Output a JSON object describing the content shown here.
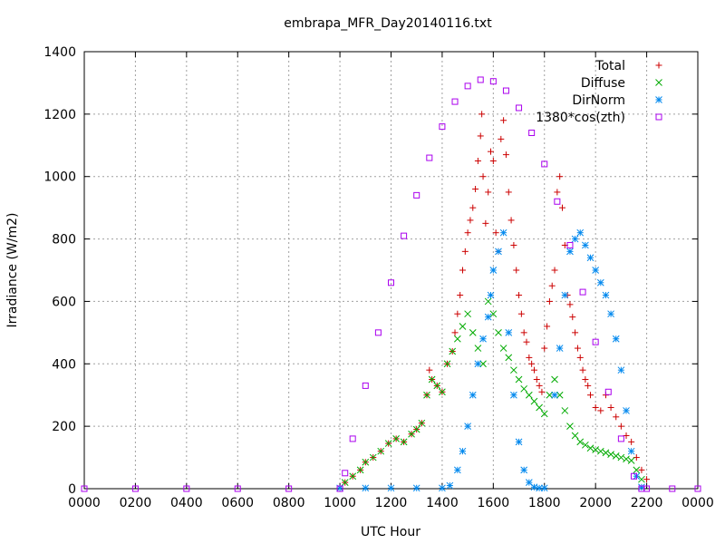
{
  "chart_data": {
    "type": "scatter",
    "title": "embrapa_MFR_Day20140116.txt",
    "xlabel": "UTC Hour",
    "ylabel": "Irradiance (W/m2)",
    "xlim": [
      0,
      24
    ],
    "ylim": [
      0,
      1400
    ],
    "grid": true,
    "legend_position": "top-right",
    "x_ticks": [
      {
        "value": 0,
        "label": "0000"
      },
      {
        "value": 2,
        "label": "0200"
      },
      {
        "value": 4,
        "label": "0400"
      },
      {
        "value": 6,
        "label": "0600"
      },
      {
        "value": 8,
        "label": "0800"
      },
      {
        "value": 10,
        "label": "1000"
      },
      {
        "value": 12,
        "label": "1200"
      },
      {
        "value": 14,
        "label": "1400"
      },
      {
        "value": 16,
        "label": "1600"
      },
      {
        "value": 18,
        "label": "1800"
      },
      {
        "value": 20,
        "label": "2000"
      },
      {
        "value": 22,
        "label": "2200"
      },
      {
        "value": 24,
        "label": "0000"
      }
    ],
    "y_ticks": [
      0,
      200,
      400,
      600,
      800,
      1000,
      1200,
      1400
    ],
    "series": [
      {
        "name": "Total",
        "color": "#cc0000",
        "marker": "plus",
        "points": [
          [
            10.2,
            20
          ],
          [
            10.5,
            40
          ],
          [
            10.8,
            60
          ],
          [
            11.0,
            85
          ],
          [
            11.3,
            100
          ],
          [
            11.6,
            120
          ],
          [
            11.9,
            145
          ],
          [
            12.2,
            160
          ],
          [
            12.5,
            150
          ],
          [
            12.8,
            175
          ],
          [
            13.0,
            190
          ],
          [
            13.2,
            210
          ],
          [
            13.4,
            300
          ],
          [
            13.5,
            380
          ],
          [
            13.6,
            350
          ],
          [
            13.8,
            330
          ],
          [
            14.0,
            310
          ],
          [
            14.2,
            400
          ],
          [
            14.4,
            440
          ],
          [
            14.5,
            500
          ],
          [
            14.6,
            560
          ],
          [
            14.7,
            620
          ],
          [
            14.8,
            700
          ],
          [
            14.9,
            760
          ],
          [
            15.0,
            820
          ],
          [
            15.1,
            860
          ],
          [
            15.2,
            900
          ],
          [
            15.3,
            960
          ],
          [
            15.4,
            1050
          ],
          [
            15.5,
            1130
          ],
          [
            15.55,
            1200
          ],
          [
            15.6,
            1000
          ],
          [
            15.7,
            850
          ],
          [
            15.8,
            950
          ],
          [
            15.9,
            1080
          ],
          [
            16.0,
            1050
          ],
          [
            16.1,
            820
          ],
          [
            16.2,
            760
          ],
          [
            16.3,
            1120
          ],
          [
            16.4,
            1180
          ],
          [
            16.5,
            1070
          ],
          [
            16.6,
            950
          ],
          [
            16.7,
            860
          ],
          [
            16.8,
            780
          ],
          [
            16.9,
            700
          ],
          [
            17.0,
            620
          ],
          [
            17.1,
            560
          ],
          [
            17.2,
            500
          ],
          [
            17.3,
            470
          ],
          [
            17.4,
            420
          ],
          [
            17.5,
            400
          ],
          [
            17.6,
            380
          ],
          [
            17.7,
            350
          ],
          [
            17.8,
            330
          ],
          [
            17.9,
            310
          ],
          [
            18.0,
            450
          ],
          [
            18.1,
            520
          ],
          [
            18.2,
            600
          ],
          [
            18.3,
            650
          ],
          [
            18.4,
            700
          ],
          [
            18.5,
            950
          ],
          [
            18.6,
            1000
          ],
          [
            18.7,
            900
          ],
          [
            18.8,
            780
          ],
          [
            18.9,
            620
          ],
          [
            19.0,
            590
          ],
          [
            19.1,
            550
          ],
          [
            19.2,
            500
          ],
          [
            19.3,
            450
          ],
          [
            19.4,
            420
          ],
          [
            19.5,
            380
          ],
          [
            19.6,
            350
          ],
          [
            19.7,
            330
          ],
          [
            19.8,
            300
          ],
          [
            20.0,
            260
          ],
          [
            20.2,
            250
          ],
          [
            20.4,
            300
          ],
          [
            20.6,
            260
          ],
          [
            20.8,
            230
          ],
          [
            21.0,
            200
          ],
          [
            21.2,
            170
          ],
          [
            21.4,
            150
          ],
          [
            21.6,
            100
          ],
          [
            21.8,
            60
          ],
          [
            22.0,
            30
          ]
        ]
      },
      {
        "name": "Diffuse",
        "color": "#00aa00",
        "marker": "cross",
        "points": [
          [
            10.2,
            20
          ],
          [
            10.5,
            40
          ],
          [
            10.8,
            60
          ],
          [
            11.0,
            85
          ],
          [
            11.3,
            100
          ],
          [
            11.6,
            120
          ],
          [
            11.9,
            145
          ],
          [
            12.2,
            160
          ],
          [
            12.5,
            150
          ],
          [
            12.8,
            175
          ],
          [
            13.0,
            190
          ],
          [
            13.2,
            210
          ],
          [
            13.4,
            300
          ],
          [
            13.6,
            350
          ],
          [
            13.8,
            330
          ],
          [
            14.0,
            310
          ],
          [
            14.2,
            400
          ],
          [
            14.4,
            440
          ],
          [
            14.6,
            480
          ],
          [
            14.8,
            520
          ],
          [
            15.0,
            560
          ],
          [
            15.2,
            500
          ],
          [
            15.4,
            450
          ],
          [
            15.6,
            400
          ],
          [
            15.8,
            600
          ],
          [
            16.0,
            560
          ],
          [
            16.2,
            500
          ],
          [
            16.4,
            450
          ],
          [
            16.6,
            420
          ],
          [
            16.8,
            380
          ],
          [
            17.0,
            350
          ],
          [
            17.2,
            320
          ],
          [
            17.4,
            300
          ],
          [
            17.6,
            280
          ],
          [
            17.8,
            260
          ],
          [
            18.0,
            240
          ],
          [
            18.2,
            300
          ],
          [
            18.4,
            350
          ],
          [
            18.6,
            300
          ],
          [
            18.8,
            250
          ],
          [
            19.0,
            200
          ],
          [
            19.2,
            170
          ],
          [
            19.4,
            150
          ],
          [
            19.6,
            140
          ],
          [
            19.8,
            130
          ],
          [
            20.0,
            125
          ],
          [
            20.2,
            120
          ],
          [
            20.4,
            115
          ],
          [
            20.6,
            110
          ],
          [
            20.8,
            105
          ],
          [
            21.0,
            100
          ],
          [
            21.2,
            95
          ],
          [
            21.4,
            90
          ],
          [
            21.6,
            60
          ],
          [
            21.8,
            30
          ]
        ]
      },
      {
        "name": "DirNorm",
        "color": "#0088ee",
        "marker": "star",
        "points": [
          [
            10.0,
            2
          ],
          [
            11.0,
            2
          ],
          [
            12.0,
            2
          ],
          [
            13.0,
            2
          ],
          [
            14.0,
            2
          ],
          [
            14.3,
            10
          ],
          [
            14.6,
            60
          ],
          [
            14.8,
            120
          ],
          [
            15.0,
            200
          ],
          [
            15.2,
            300
          ],
          [
            15.4,
            400
          ],
          [
            15.6,
            480
          ],
          [
            15.8,
            550
          ],
          [
            15.9,
            620
          ],
          [
            16.0,
            700
          ],
          [
            16.2,
            760
          ],
          [
            16.4,
            820
          ],
          [
            16.6,
            500
          ],
          [
            16.8,
            300
          ],
          [
            17.0,
            150
          ],
          [
            17.2,
            60
          ],
          [
            17.4,
            20
          ],
          [
            17.6,
            5
          ],
          [
            17.8,
            2
          ],
          [
            18.0,
            2
          ],
          [
            18.4,
            300
          ],
          [
            18.6,
            450
          ],
          [
            18.8,
            620
          ],
          [
            19.0,
            760
          ],
          [
            19.2,
            800
          ],
          [
            19.4,
            820
          ],
          [
            19.6,
            780
          ],
          [
            19.8,
            740
          ],
          [
            20.0,
            700
          ],
          [
            20.2,
            660
          ],
          [
            20.4,
            620
          ],
          [
            20.6,
            560
          ],
          [
            20.8,
            480
          ],
          [
            21.0,
            380
          ],
          [
            21.2,
            250
          ],
          [
            21.4,
            120
          ],
          [
            21.6,
            40
          ],
          [
            21.8,
            5
          ]
        ]
      },
      {
        "name": "1380*cos(zth)",
        "color": "#aa00ee",
        "marker": "square",
        "points": [
          [
            0,
            0
          ],
          [
            2,
            0
          ],
          [
            4,
            0
          ],
          [
            6,
            0
          ],
          [
            8,
            0
          ],
          [
            10,
            0
          ],
          [
            10.2,
            50
          ],
          [
            10.5,
            160
          ],
          [
            11,
            330
          ],
          [
            11.5,
            500
          ],
          [
            12,
            660
          ],
          [
            12.5,
            810
          ],
          [
            13,
            940
          ],
          [
            13.5,
            1060
          ],
          [
            14,
            1160
          ],
          [
            14.5,
            1240
          ],
          [
            15,
            1290
          ],
          [
            15.5,
            1310
          ],
          [
            16,
            1305
          ],
          [
            16.5,
            1275
          ],
          [
            17,
            1220
          ],
          [
            17.5,
            1140
          ],
          [
            18,
            1040
          ],
          [
            18.5,
            920
          ],
          [
            19,
            780
          ],
          [
            19.5,
            630
          ],
          [
            20,
            470
          ],
          [
            20.5,
            310
          ],
          [
            21,
            160
          ],
          [
            21.5,
            40
          ],
          [
            21.8,
            0
          ],
          [
            22,
            0
          ],
          [
            23,
            0
          ],
          [
            24,
            0
          ]
        ]
      }
    ]
  }
}
